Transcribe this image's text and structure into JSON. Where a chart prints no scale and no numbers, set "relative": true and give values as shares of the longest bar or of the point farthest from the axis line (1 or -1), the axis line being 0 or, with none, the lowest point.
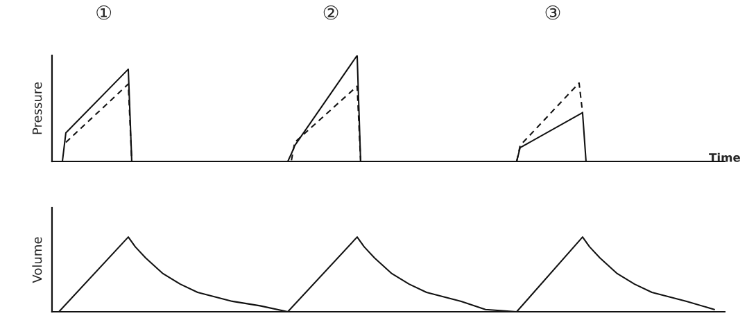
{
  "chart_data": [
    {
      "type": "line",
      "relative": true,
      "ylabel": "Pressure",
      "xlabel": "Time",
      "annotations": [
        "①",
        "②",
        "③"
      ],
      "categories": [
        null,
        null,
        null,
        null,
        null,
        null,
        null,
        null,
        null,
        null,
        null,
        null,
        null,
        null,
        null,
        null,
        null,
        null,
        null,
        null,
        null,
        null,
        null,
        null,
        null,
        null,
        null,
        null,
        null,
        null,
        null,
        null,
        null,
        null,
        null,
        null,
        null,
        null,
        null,
        null,
        null,
        null,
        null,
        null,
        null,
        null,
        null,
        null,
        null,
        null,
        null,
        null,
        null,
        null,
        null,
        null,
        null,
        null,
        null,
        null,
        null,
        null,
        null,
        null,
        null,
        null,
        null,
        null,
        null,
        null,
        null,
        null,
        null,
        null,
        null,
        null,
        null,
        null,
        null,
        null,
        null,
        null,
        null,
        null,
        null,
        null,
        null,
        null,
        null,
        null,
        null,
        null,
        null,
        null,
        null,
        null,
        null,
        null,
        null,
        null,
        null,
        null,
        null,
        null,
        null,
        null,
        null,
        null,
        null,
        null,
        null,
        null,
        null,
        null,
        null,
        null,
        null,
        null,
        null,
        null,
        null,
        null,
        null,
        null,
        null,
        null,
        null,
        null,
        null,
        null,
        null,
        null,
        null,
        null,
        null,
        null,
        null,
        null,
        null,
        null,
        null,
        null,
        null,
        null,
        null,
        null,
        null,
        null,
        null,
        null,
        null,
        null,
        null,
        null,
        null,
        null,
        null,
        null,
        null,
        null,
        null,
        null,
        null,
        null,
        null,
        null,
        null,
        null,
        null,
        null,
        null,
        null,
        null,
        null,
        null,
        null,
        null,
        null,
        null,
        null,
        null,
        null,
        null,
        null,
        null,
        null,
        null,
        null,
        null,
        null,
        null,
        null,
        null,
        null,
        null
      ],
      "series": [
        {
          "color": "#111111",
          "line_style": "solid",
          "values": [
            null,
            null,
            null,
            0,
            0.27,
            null,
            null,
            null,
            null,
            null,
            null,
            null,
            null,
            null,
            null,
            null,
            null,
            null,
            null,
            null,
            null,
            null,
            0.87,
            0,
            null,
            null,
            null,
            null,
            null,
            null,
            null,
            null,
            null,
            null,
            null,
            null,
            null,
            null,
            null,
            null,
            null,
            null,
            null,
            null,
            null,
            null,
            null,
            null,
            null,
            null,
            null,
            null,
            null,
            null,
            null,
            null,
            null,
            null,
            null,
            null,
            null,
            null,
            null,
            null,
            null,
            null,
            null,
            null,
            0,
            0.07,
            0.15,
            null,
            null,
            null,
            null,
            null,
            null,
            null,
            null,
            null,
            null,
            null,
            null,
            null,
            null,
            null,
            null,
            null,
            1.0,
            0,
            null,
            null,
            null,
            null,
            null,
            null,
            null,
            null,
            null,
            null,
            null,
            null,
            null,
            null,
            null,
            null,
            null,
            null,
            null,
            null,
            null,
            null,
            null,
            null,
            null,
            null,
            null,
            null,
            null,
            null,
            null,
            null,
            null,
            null,
            null,
            null,
            null,
            null,
            null,
            null,
            null,
            null,
            null,
            null,
            0,
            0.13,
            null,
            null,
            null,
            null,
            null,
            null,
            null,
            null,
            null,
            null,
            null,
            null,
            null,
            null,
            null,
            null,
            null,
            0.46,
            0,
            null,
            null,
            null,
            null,
            null,
            null,
            null,
            null,
            null,
            null,
            null,
            null,
            null,
            null,
            null,
            null,
            null,
            null,
            null,
            null,
            null,
            null,
            null,
            null,
            null,
            null,
            null,
            null,
            null,
            null,
            null,
            null,
            null,
            null,
            null,
            null,
            null,
            null,
            null,
            null
          ]
        },
        {
          "color": "#111111",
          "line_style": "dashed",
          "values": [
            null,
            null,
            null,
            null,
            0.18,
            null,
            null,
            null,
            null,
            null,
            null,
            null,
            null,
            null,
            null,
            null,
            null,
            null,
            null,
            null,
            null,
            null,
            0.73,
            0,
            null,
            null,
            null,
            null,
            null,
            null,
            null,
            null,
            null,
            null,
            null,
            null,
            null,
            null,
            null,
            null,
            null,
            null,
            null,
            null,
            null,
            null,
            null,
            null,
            null,
            null,
            null,
            null,
            null,
            null,
            null,
            null,
            null,
            null,
            null,
            null,
            null,
            null,
            null,
            null,
            null,
            null,
            null,
            null,
            null,
            0,
            0.18,
            null,
            null,
            null,
            null,
            null,
            null,
            null,
            null,
            null,
            null,
            null,
            null,
            null,
            null,
            null,
            null,
            null,
            0.71,
            0,
            null,
            null,
            null,
            null,
            null,
            null,
            null,
            null,
            null,
            null,
            null,
            null,
            null,
            null,
            null,
            null,
            null,
            null,
            null,
            null,
            null,
            null,
            null,
            null,
            null,
            null,
            null,
            null,
            null,
            null,
            null,
            null,
            null,
            null,
            null,
            null,
            null,
            null,
            null,
            null,
            null,
            null,
            null,
            null,
            0,
            0.15,
            null,
            null,
            null,
            null,
            null,
            null,
            null,
            null,
            null,
            null,
            null,
            null,
            null,
            null,
            null,
            null,
            0.74,
            0.46,
            null,
            null,
            null,
            null,
            null,
            null,
            null,
            null,
            null,
            null,
            null,
            null,
            null,
            null,
            null,
            null,
            null,
            null,
            null,
            null,
            null,
            null,
            null,
            null,
            null,
            null,
            null,
            null,
            null,
            null,
            null,
            null,
            null,
            null,
            null,
            null,
            null,
            null,
            null,
            null,
            null
          ]
        }
      ]
    },
    {
      "type": "line",
      "relative": true,
      "ylabel": "Volume",
      "categories": [
        null,
        null,
        null,
        null,
        null,
        null,
        null,
        null,
        null,
        null,
        null,
        null,
        null,
        null,
        null,
        null,
        null,
        null,
        null,
        null,
        null,
        null,
        null,
        null,
        null,
        null,
        null,
        null,
        null,
        null,
        null,
        null,
        null,
        null,
        null,
        null,
        null,
        null,
        null,
        null,
        null,
        null,
        null,
        null,
        null,
        null,
        null,
        null,
        null,
        null,
        null,
        null,
        null,
        null,
        null,
        null,
        null,
        null,
        null,
        null,
        null,
        null,
        null,
        null,
        null,
        null,
        null,
        null,
        null,
        null,
        null,
        null,
        null,
        null,
        null,
        null,
        null,
        null,
        null,
        null,
        null,
        null,
        null,
        null,
        null,
        null,
        null,
        null,
        null,
        null,
        null,
        null,
        null,
        null,
        null,
        null,
        null,
        null,
        null,
        null,
        null,
        null,
        null,
        null,
        null,
        null,
        null,
        null,
        null,
        null,
        null,
        null,
        null,
        null,
        null,
        null,
        null,
        null,
        null,
        null,
        null,
        null,
        null,
        null,
        null,
        null,
        null,
        null,
        null,
        null,
        null,
        null,
        null,
        null,
        null,
        null,
        null,
        null,
        null,
        null,
        null,
        null,
        null,
        null,
        null,
        null,
        null,
        null,
        null,
        null,
        null,
        null,
        null,
        null,
        null,
        null,
        null,
        null,
        null,
        null,
        null,
        null,
        null,
        null,
        null,
        null,
        null,
        null,
        null,
        null,
        null,
        null,
        null,
        null,
        null,
        null,
        null,
        null,
        null,
        null,
        null,
        null,
        null,
        null,
        null,
        null,
        null,
        null,
        null,
        null,
        null,
        null,
        null,
        null,
        null
      ],
      "series": [
        {
          "color": "#111111",
          "line_style": "solid",
          "values": [
            null,
            null,
            0,
            null,
            null,
            null,
            null,
            null,
            null,
            null,
            null,
            null,
            null,
            null,
            null,
            null,
            null,
            null,
            null,
            null,
            null,
            null,
            1.0,
            null,
            0.87,
            null,
            null,
            0.72,
            null,
            null,
            null,
            null,
            0.51,
            null,
            null,
            null,
            null,
            0.37,
            null,
            null,
            null,
            null,
            0.26,
            null,
            null,
            null,
            null,
            null,
            null,
            null,
            null,
            null,
            0.14,
            null,
            null,
            null,
            null,
            null,
            null,
            null,
            0.08,
            null,
            null,
            null,
            null,
            null,
            null,
            null,
            0,
            null,
            null,
            null,
            null,
            null,
            null,
            null,
            null,
            null,
            null,
            null,
            null,
            null,
            null,
            null,
            null,
            null,
            null,
            null,
            1.0,
            null,
            0.87,
            null,
            null,
            0.72,
            null,
            null,
            null,
            null,
            0.51,
            null,
            null,
            null,
            null,
            0.37,
            null,
            null,
            null,
            null,
            0.26,
            null,
            null,
            null,
            null,
            null,
            null,
            null,
            null,
            null,
            0.14,
            null,
            null,
            null,
            null,
            null,
            null,
            0.03,
            null,
            null,
            null,
            null,
            null,
            null,
            null,
            null,
            0,
            null,
            null,
            null,
            null,
            null,
            null,
            null,
            null,
            null,
            null,
            null,
            null,
            null,
            null,
            null,
            null,
            null,
            null,
            1.0,
            null,
            0.87,
            null,
            null,
            0.72,
            null,
            null,
            null,
            null,
            0.51,
            null,
            null,
            null,
            null,
            0.37,
            null,
            null,
            null,
            null,
            0.26,
            null,
            null,
            null,
            null,
            null,
            null,
            null,
            null,
            null,
            0.14,
            null,
            null,
            null,
            null,
            null,
            null,
            null,
            0.03,
            null,
            null,
            null
          ]
        }
      ]
    }
  ]
}
